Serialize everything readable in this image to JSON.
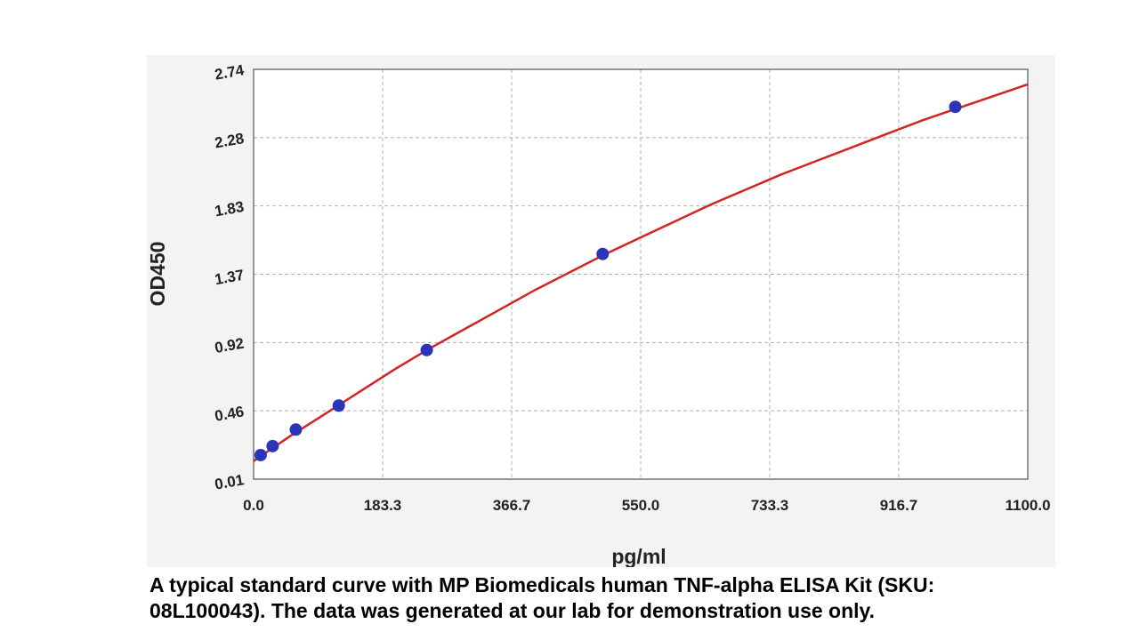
{
  "chart_data": {
    "type": "scatter",
    "title": "",
    "xlabel": "pg/ml",
    "ylabel": "OD450",
    "xlim": [
      0,
      1100
    ],
    "ylim": [
      0.01,
      2.74
    ],
    "x_ticks": [
      "0.0",
      "183.3",
      "366.7",
      "550.0",
      "733.3",
      "916.7",
      "1100.0"
    ],
    "y_ticks": [
      "0.01",
      "0.46",
      "0.92",
      "1.37",
      "1.83",
      "2.28",
      "2.74"
    ],
    "grid": true,
    "series": [
      {
        "points": [
          {
            "x": 10,
            "y": 0.17
          },
          {
            "x": 27,
            "y": 0.23
          },
          {
            "x": 60,
            "y": 0.34
          },
          {
            "x": 121,
            "y": 0.5
          },
          {
            "x": 246,
            "y": 0.87
          },
          {
            "x": 496,
            "y": 1.51
          },
          {
            "x": 997,
            "y": 2.49
          }
        ]
      }
    ],
    "fit_curve": {
      "x": [
        0,
        50,
        100,
        150,
        200,
        250,
        300,
        350,
        400,
        450,
        500,
        550,
        600,
        650,
        700,
        750,
        800,
        850,
        900,
        950,
        1000,
        1050,
        1100
      ],
      "y": [
        0.13,
        0.29,
        0.44,
        0.59,
        0.74,
        0.88,
        1.01,
        1.14,
        1.27,
        1.39,
        1.51,
        1.62,
        1.73,
        1.84,
        1.94,
        2.04,
        2.13,
        2.22,
        2.31,
        2.4,
        2.48,
        2.56,
        2.64
      ]
    },
    "colors": {
      "point": "#2b35b8",
      "curve": "#d42323",
      "grid": "#b0b0b0",
      "panel": "#f3f3f3",
      "plot_area": "#ffffff"
    }
  },
  "caption": {
    "line1": "A typical standard curve with MP Biomedicals human TNF-alpha ELISA Kit (SKU:",
    "line2": "08L100043). The data was generated at our lab for demonstration use only."
  }
}
